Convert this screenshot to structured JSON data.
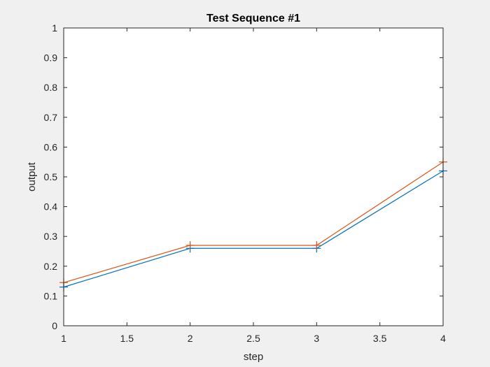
{
  "chart_data": {
    "type": "line",
    "title": "Test Sequence #1",
    "xlabel": "step",
    "ylabel": "output",
    "xlim": [
      1,
      4
    ],
    "ylim": [
      0,
      1
    ],
    "xticks": [
      1,
      1.5,
      2,
      2.5,
      3,
      3.5,
      4
    ],
    "xtick_labels": [
      "1",
      "1.5",
      "2",
      "2.5",
      "3",
      "3.5",
      "4"
    ],
    "yticks": [
      0,
      0.1,
      0.2,
      0.3,
      0.4,
      0.5,
      0.6,
      0.7,
      0.8,
      0.9,
      1
    ],
    "ytick_labels": [
      "0",
      "0.1",
      "0.2",
      "0.3",
      "0.4",
      "0.5",
      "0.6",
      "0.7",
      "0.8",
      "0.9",
      "1"
    ],
    "grid": false,
    "marker": "plus",
    "x": [
      1,
      2,
      3,
      4
    ],
    "series": [
      {
        "color": "#0072BD",
        "values": [
          0.13,
          0.26,
          0.26,
          0.52
        ]
      },
      {
        "color": "#D95319",
        "values": [
          0.145,
          0.27,
          0.27,
          0.55
        ]
      }
    ]
  },
  "colors": {
    "figure_background": "#f0f0f0",
    "axes_background": "#ffffff",
    "axes_edge": "#262626"
  }
}
